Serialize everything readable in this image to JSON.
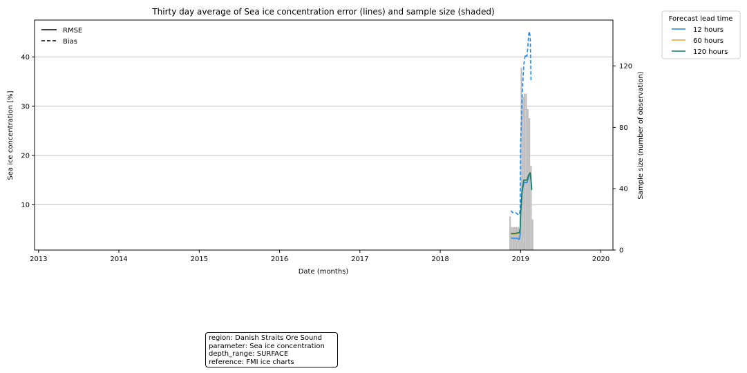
{
  "chart_data": {
    "type": "line",
    "title": "Thirty day average of Sea ice concentration error (lines) and sample size (shaded)",
    "xlabel": "Date (months)",
    "ylabel": "Sea ice concentration [%]",
    "y2label": "Sample size (number of observation)",
    "xlim": [
      2012.95,
      2020.15
    ],
    "ylim": [
      0.8,
      47.5
    ],
    "y2lim": [
      0,
      150
    ],
    "xticks": [
      2013,
      2014,
      2015,
      2016,
      2017,
      2018,
      2019,
      2020
    ],
    "xtick_labels": [
      "2013",
      "2014",
      "2015",
      "2016",
      "2017",
      "2018",
      "2019",
      "2020"
    ],
    "yticks": [
      10,
      20,
      30,
      40
    ],
    "ytick_labels": [
      "10",
      "20",
      "30",
      "40"
    ],
    "y2ticks": [
      0,
      40,
      80,
      120
    ],
    "y2tick_labels": [
      "0",
      "40",
      "80",
      "120"
    ],
    "grid": "horizontal",
    "style_legend": {
      "placement": "upper-left",
      "entries": [
        {
          "label": "RMSE",
          "dash": "solid"
        },
        {
          "label": "Bias",
          "dash": "dashed"
        }
      ]
    },
    "lead_legend": {
      "title": "Forecast lead time",
      "placement": "outside-top-right",
      "entries": [
        {
          "label": "12 hours",
          "color": "#1f88e5"
        },
        {
          "label": "60 hours",
          "color": "#e0a528"
        },
        {
          "label": "120 hours",
          "color": "#0c7a6e"
        }
      ]
    },
    "sample_size": {
      "color": "#bfbfbf",
      "x": [
        2018.87,
        2018.89,
        2018.91,
        2018.93,
        2018.95,
        2018.97,
        2018.99,
        2019.01,
        2019.03,
        2019.05,
        2019.07,
        2019.09,
        2019.11,
        2019.13,
        2019.15
      ],
      "values": [
        22,
        15,
        15,
        15,
        15,
        15,
        14,
        119,
        100,
        102,
        102,
        92,
        86,
        55,
        20
      ]
    },
    "series": [
      {
        "name": "12 hours",
        "color": "#1f88e5",
        "rmse": {
          "x": [
            2018.88,
            2018.9,
            2018.92,
            2018.94,
            2018.96,
            2018.975,
            2018.985,
            2018.995,
            2019.0,
            2019.02,
            2019.04,
            2019.06,
            2019.08,
            2019.1,
            2019.12,
            2019.14
          ],
          "y": [
            3.3,
            3.2,
            3.2,
            3.2,
            3.2,
            3.0,
            3.0,
            4.0,
            7.5,
            12.5,
            14.5,
            14.5,
            14.5,
            15.5,
            16.3,
            13.5
          ]
        },
        "bias": {
          "x": [
            2018.88,
            2018.9,
            2018.92,
            2018.94,
            2018.96,
            2018.975,
            2018.985,
            2018.995,
            2019.0,
            2019.02,
            2019.04,
            2019.06,
            2019.07,
            2019.08,
            2019.09,
            2019.1,
            2019.11,
            2019.12,
            2019.13
          ],
          "y": [
            8.8,
            8.4,
            8.4,
            8.4,
            8.1,
            8.0,
            8.0,
            9.0,
            22.0,
            32.0,
            38.5,
            40.5,
            40.2,
            40.2,
            42.0,
            44.5,
            45.2,
            44.0,
            35.2
          ]
        }
      },
      {
        "name": "60 hours",
        "color": "#e0a528",
        "rmse": {
          "x": [
            2018.88,
            2018.9,
            2018.92,
            2018.94,
            2018.96,
            2018.975,
            2018.985,
            2018.995,
            2019.0,
            2019.02,
            2019.04,
            2019.06,
            2019.08,
            2019.1,
            2019.12,
            2019.14
          ],
          "y": [
            4.0,
            4.0,
            4.0,
            4.0,
            4.1,
            4.2,
            4.2,
            5.0,
            8.0,
            12.8,
            15.0,
            15.0,
            14.9,
            15.8,
            16.5,
            13.2
          ]
        }
      },
      {
        "name": "120 hours",
        "color": "#0c7a6e",
        "rmse": {
          "x": [
            2018.88,
            2018.9,
            2018.92,
            2018.94,
            2018.96,
            2018.975,
            2018.985,
            2018.995,
            2019.0,
            2019.02,
            2019.04,
            2019.06,
            2019.08,
            2019.1,
            2019.12,
            2019.14
          ],
          "y": [
            4.2,
            4.2,
            4.2,
            4.2,
            4.3,
            4.3,
            4.3,
            5.2,
            8.2,
            13.0,
            15.0,
            15.0,
            15.0,
            16.0,
            16.5,
            13.0
          ]
        }
      }
    ]
  },
  "info_box": {
    "lines": [
      "region: Danish Straits Ore Sound",
      "parameter: Sea ice concentration",
      "depth_range: SURFACE",
      "reference: FMI ice charts"
    ]
  }
}
